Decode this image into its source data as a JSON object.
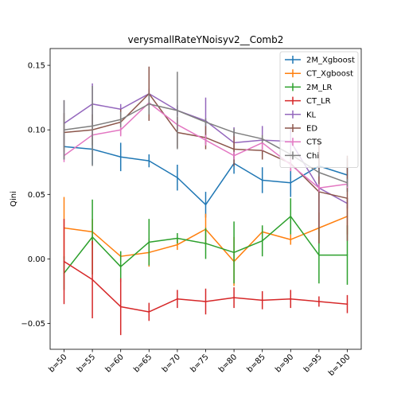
{
  "chart_data": {
    "type": "line",
    "title": "verysmallRateYNoisyv2__Comb2",
    "xlabel": "",
    "ylabel": "Qini",
    "categories": [
      "b=50",
      "b=55",
      "b=60",
      "b=65",
      "b=70",
      "b=75",
      "b=80",
      "b=85",
      "b=90",
      "b=95",
      "b=100"
    ],
    "ylim": [
      -0.07,
      0.163
    ],
    "yticks": [
      -0.05,
      0.0,
      0.05,
      0.1,
      0.15
    ],
    "ytick_labels": [
      "−0.05",
      "0.00",
      "0.05",
      "0.10",
      "0.15"
    ],
    "grid": false,
    "legend_position": "upper right",
    "error_bars": true,
    "series": [
      {
        "name": "2M_Xgboost",
        "color": "#1f77b4",
        "values": [
          0.087,
          0.085,
          0.079,
          0.076,
          0.063,
          0.042,
          0.074,
          0.061,
          0.059,
          0.072,
          0.065
        ],
        "errors": [
          0.01,
          0.012,
          0.011,
          0.005,
          0.01,
          0.01,
          0.008,
          0.01,
          0.011,
          0.006,
          0.013
        ]
      },
      {
        "name": "CT_Xgboost",
        "color": "#ff7f0e",
        "values": [
          0.024,
          0.021,
          0.002,
          0.005,
          0.011,
          0.023,
          -0.002,
          0.021,
          0.015,
          0.024,
          0.033
        ],
        "errors": [
          0.024,
          0.01,
          0.003,
          0.011,
          0.004,
          0.012,
          0.019,
          0.003,
          0.004,
          0.012,
          0.014
        ]
      },
      {
        "name": "2M_LR",
        "color": "#2ca02c",
        "values": [
          -0.011,
          0.017,
          -0.006,
          0.013,
          0.016,
          0.012,
          0.005,
          0.014,
          0.033,
          0.003,
          0.003
        ],
        "errors": [
          0.013,
          0.029,
          0.012,
          0.018,
          0.004,
          0.012,
          0.024,
          0.012,
          0.014,
          0.022,
          0.023
        ]
      },
      {
        "name": "CT_LR",
        "color": "#d62728",
        "values": [
          -0.002,
          -0.016,
          -0.037,
          -0.041,
          -0.031,
          -0.033,
          -0.03,
          -0.032,
          -0.031,
          -0.033,
          -0.035
        ],
        "errors": [
          0.033,
          0.03,
          0.022,
          0.007,
          0.007,
          0.01,
          0.008,
          0.007,
          0.007,
          0.004,
          0.007
        ]
      },
      {
        "name": "KL",
        "color": "#9467bd",
        "values": [
          0.105,
          0.12,
          0.116,
          0.128,
          0.115,
          0.107,
          0.09,
          0.092,
          0.091,
          0.055,
          0.043
        ],
        "errors": [
          0.018,
          0.016,
          0.004,
          0.004,
          0.004,
          0.018,
          0.012,
          0.011,
          0.01,
          0.031,
          0.004
        ]
      },
      {
        "name": "ED",
        "color": "#8c564b",
        "values": [
          0.098,
          0.1,
          0.106,
          0.128,
          0.098,
          0.094,
          0.085,
          0.084,
          0.074,
          0.052,
          0.047
        ],
        "errors": [
          0.015,
          0.012,
          0.01,
          0.021,
          0.012,
          0.009,
          0.013,
          0.007,
          0.006,
          0.04,
          0.033
        ]
      },
      {
        "name": "CTS",
        "color": "#e377c2",
        "values": [
          0.08,
          0.096,
          0.1,
          0.121,
          0.104,
          0.092,
          0.08,
          0.09,
          0.073,
          0.055,
          0.058
        ],
        "errors": [
          0.005,
          0.003,
          0.005,
          0.004,
          0.004,
          0.004,
          0.003,
          0.006,
          0.005,
          0.003,
          0.003
        ]
      },
      {
        "name": "Chi",
        "color": "#7f7f7f",
        "values": [
          0.1,
          0.103,
          0.108,
          0.12,
          0.115,
          0.106,
          0.098,
          0.093,
          0.081,
          0.067,
          0.059
        ],
        "errors": [
          0.023,
          0.031,
          0.006,
          0.008,
          0.03,
          0.003,
          0.003,
          0.003,
          0.003,
          0.003,
          0.003
        ]
      }
    ]
  }
}
